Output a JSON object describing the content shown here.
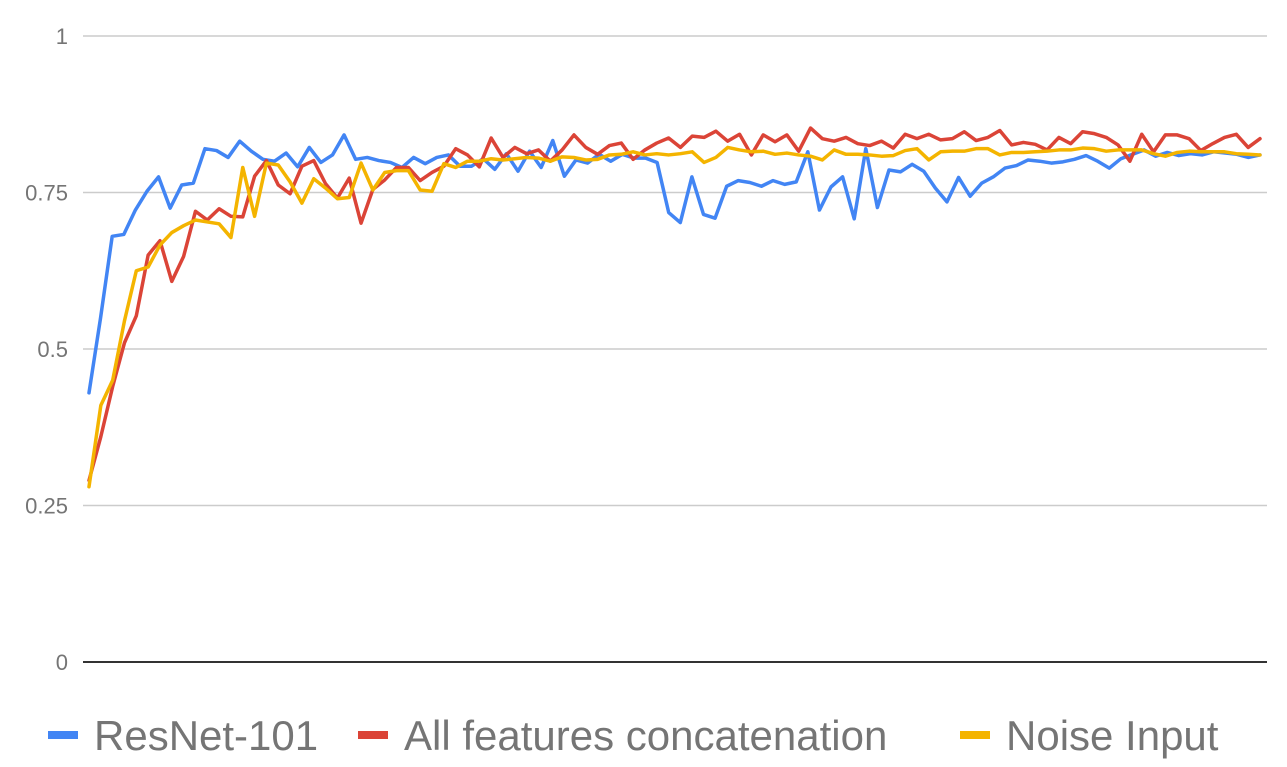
{
  "chart_data": {
    "type": "line",
    "title": "",
    "xlabel": "",
    "ylabel": "",
    "ylim": [
      0,
      1
    ],
    "yticks": [
      {
        "value": 0,
        "label": "0"
      },
      {
        "value": 0.25,
        "label": "0.25"
      },
      {
        "value": 0.5,
        "label": "0.5"
      },
      {
        "value": 0.75,
        "label": "0.75"
      },
      {
        "value": 1,
        "label": "1"
      }
    ],
    "grid": true,
    "legend_position": "bottom",
    "series": [
      {
        "name": "ResNet-101",
        "color": "#4285F4",
        "values": [
          0.43,
          0.55,
          0.68,
          0.683,
          0.722,
          0.752,
          0.775,
          0.725,
          0.762,
          0.765,
          0.82,
          0.817,
          0.806,
          0.832,
          0.816,
          0.803,
          0.8,
          0.813,
          0.791,
          0.822,
          0.798,
          0.81,
          0.842,
          0.803,
          0.806,
          0.801,
          0.798,
          0.79,
          0.806,
          0.796,
          0.806,
          0.81,
          0.792,
          0.792,
          0.804,
          0.787,
          0.812,
          0.784,
          0.816,
          0.79,
          0.833,
          0.776,
          0.802,
          0.797,
          0.811,
          0.8,
          0.811,
          0.805,
          0.805,
          0.798,
          0.718,
          0.702,
          0.775,
          0.715,
          0.709,
          0.76,
          0.769,
          0.766,
          0.76,
          0.769,
          0.763,
          0.767,
          0.815,
          0.722,
          0.759,
          0.775,
          0.708,
          0.82,
          0.726,
          0.786,
          0.783,
          0.795,
          0.784,
          0.757,
          0.735,
          0.774,
          0.744,
          0.765,
          0.775,
          0.789,
          0.793,
          0.802,
          0.8,
          0.797,
          0.799,
          0.803,
          0.809,
          0.8,
          0.789,
          0.804,
          0.811,
          0.818,
          0.808,
          0.814,
          0.809,
          0.812,
          0.81,
          0.815,
          0.813,
          0.811,
          0.806,
          0.81
        ]
      },
      {
        "name": "All features concatenation",
        "color": "#DB4437",
        "values": [
          0.29,
          0.36,
          0.44,
          0.51,
          0.553,
          0.65,
          0.673,
          0.608,
          0.648,
          0.72,
          0.706,
          0.724,
          0.712,
          0.711,
          0.776,
          0.801,
          0.762,
          0.748,
          0.792,
          0.801,
          0.764,
          0.741,
          0.773,
          0.701,
          0.755,
          0.77,
          0.79,
          0.79,
          0.769,
          0.782,
          0.792,
          0.82,
          0.81,
          0.791,
          0.837,
          0.806,
          0.822,
          0.812,
          0.818,
          0.8,
          0.818,
          0.842,
          0.822,
          0.811,
          0.825,
          0.829,
          0.803,
          0.818,
          0.829,
          0.837,
          0.822,
          0.84,
          0.838,
          0.848,
          0.832,
          0.843,
          0.81,
          0.842,
          0.831,
          0.842,
          0.816,
          0.853,
          0.836,
          0.832,
          0.838,
          0.828,
          0.825,
          0.832,
          0.821,
          0.843,
          0.836,
          0.843,
          0.834,
          0.836,
          0.847,
          0.833,
          0.838,
          0.849,
          0.826,
          0.83,
          0.827,
          0.818,
          0.838,
          0.828,
          0.847,
          0.844,
          0.838,
          0.826,
          0.8,
          0.843,
          0.815,
          0.842,
          0.842,
          0.836,
          0.817,
          0.828,
          0.838,
          0.843,
          0.822,
          0.836
        ]
      },
      {
        "name": "Noise Input",
        "color": "#F4B400",
        "values": [
          0.28,
          0.41,
          0.45,
          0.545,
          0.625,
          0.631,
          0.666,
          0.686,
          0.697,
          0.706,
          0.703,
          0.7,
          0.678,
          0.79,
          0.712,
          0.797,
          0.794,
          0.767,
          0.733,
          0.772,
          0.757,
          0.74,
          0.742,
          0.797,
          0.754,
          0.782,
          0.785,
          0.785,
          0.754,
          0.752,
          0.796,
          0.79,
          0.8,
          0.8,
          0.804,
          0.802,
          0.804,
          0.806,
          0.805,
          0.8,
          0.807,
          0.806,
          0.802,
          0.803,
          0.81,
          0.811,
          0.815,
          0.81,
          0.812,
          0.81,
          0.812,
          0.815,
          0.798,
          0.806,
          0.822,
          0.818,
          0.815,
          0.816,
          0.811,
          0.813,
          0.81,
          0.808,
          0.802,
          0.818,
          0.811,
          0.811,
          0.81,
          0.808,
          0.809,
          0.817,
          0.82,
          0.802,
          0.815,
          0.816,
          0.816,
          0.82,
          0.82,
          0.81,
          0.814,
          0.814,
          0.815,
          0.816,
          0.818,
          0.818,
          0.821,
          0.82,
          0.816,
          0.818,
          0.818,
          0.818,
          0.812,
          0.808,
          0.814,
          0.816,
          0.815,
          0.815,
          0.815,
          0.812,
          0.811,
          0.81
        ]
      }
    ]
  }
}
